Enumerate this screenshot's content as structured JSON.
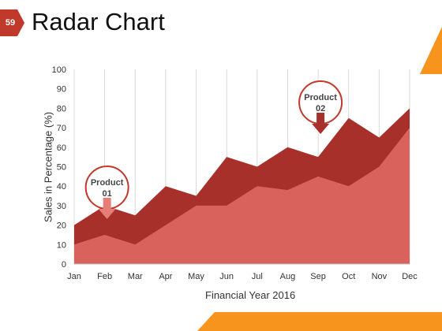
{
  "slide": {
    "number": "59",
    "title": "Radar Chart",
    "accent_color": "#c0392b",
    "corner_color": "#f7941d"
  },
  "chart_data": {
    "type": "area",
    "title": "",
    "xlabel": "Financial Year 2016",
    "ylabel": "Sales in Percentage (%)",
    "categories": [
      "Jan",
      "Feb",
      "Mar",
      "Apr",
      "May",
      "Jun",
      "Jul",
      "Aug",
      "Sep",
      "Oct",
      "Nov",
      "Dec"
    ],
    "ylim": [
      0,
      100
    ],
    "yticks": [
      0,
      10,
      20,
      30,
      40,
      50,
      60,
      70,
      80,
      90,
      100
    ],
    "grid": "vertical",
    "series": [
      {
        "name": "Product 02",
        "color": "#a8302a",
        "values": [
          20,
          30,
          25,
          40,
          35,
          55,
          50,
          60,
          55,
          75,
          65,
          80
        ]
      },
      {
        "name": "Product 01",
        "color": "#d9635c",
        "values": [
          10,
          15,
          10,
          20,
          30,
          30,
          40,
          38,
          45,
          40,
          50,
          70
        ]
      }
    ],
    "annotations": [
      {
        "label_line1": "Product",
        "label_line2": "01",
        "category": "Feb",
        "arrow_color": "#e47e76"
      },
      {
        "label_line1": "Product",
        "label_line2": "02",
        "category": "Sep",
        "arrow_color": "#a8302a"
      }
    ]
  }
}
